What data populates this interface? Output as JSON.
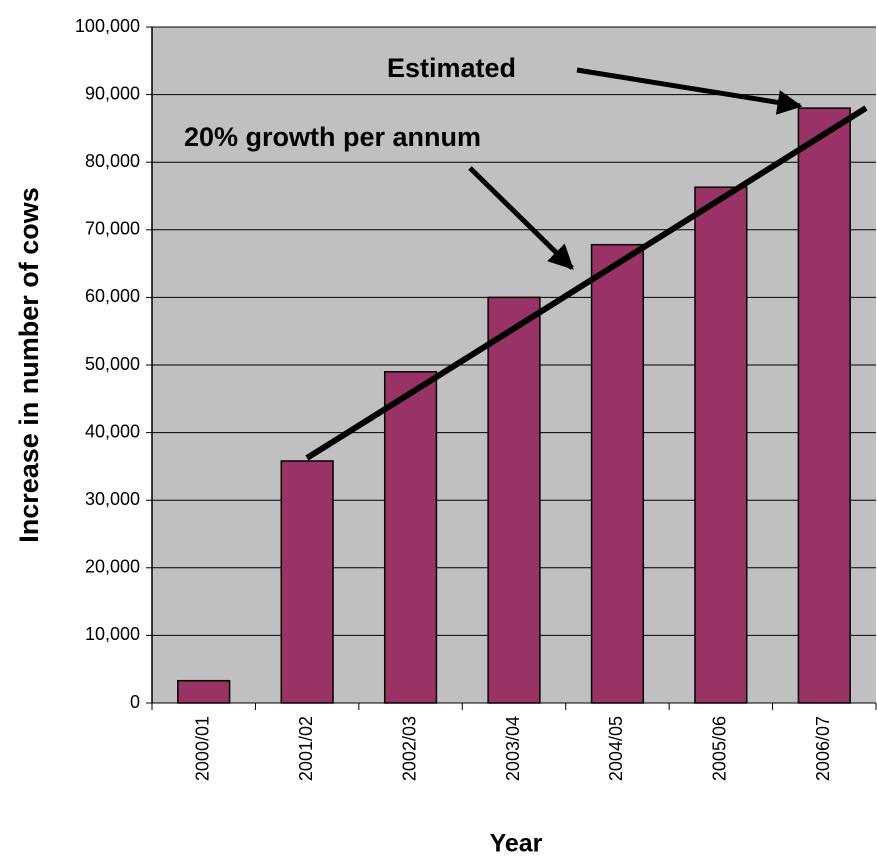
{
  "chart_data": {
    "type": "bar",
    "ylabel": "Increase in number of cows",
    "xlabel": "Year",
    "categories": [
      "2000/01",
      "2001/02",
      "2002/03",
      "2003/04",
      "2004/05",
      "2005/06",
      "2006/07"
    ],
    "values": [
      3300,
      35800,
      49000,
      60000,
      67800,
      76300,
      88000
    ],
    "color": "#993366",
    "background": "#c0c0c0",
    "ylim": [
      0,
      100000
    ],
    "yticks": [
      0,
      {
        "value": 10000,
        "label": "10,000"
      },
      {
        "value": 20000,
        "label": "20,000"
      },
      {
        "value": 30000,
        "label": "30,000"
      },
      {
        "value": 40000,
        "label": "40,000"
      },
      {
        "value": 50000,
        "label": "50,000"
      },
      {
        "value": 60000,
        "label": "60,000"
      },
      {
        "value": 70000,
        "label": "70,000"
      },
      {
        "value": 80000,
        "label": "80,000"
      },
      {
        "value": 90000,
        "label": "90,000"
      },
      {
        "value": 100000,
        "label": "100,000"
      }
    ],
    "grid": true,
    "annotations": [
      "Estimated",
      "20% growth per annum"
    ]
  }
}
